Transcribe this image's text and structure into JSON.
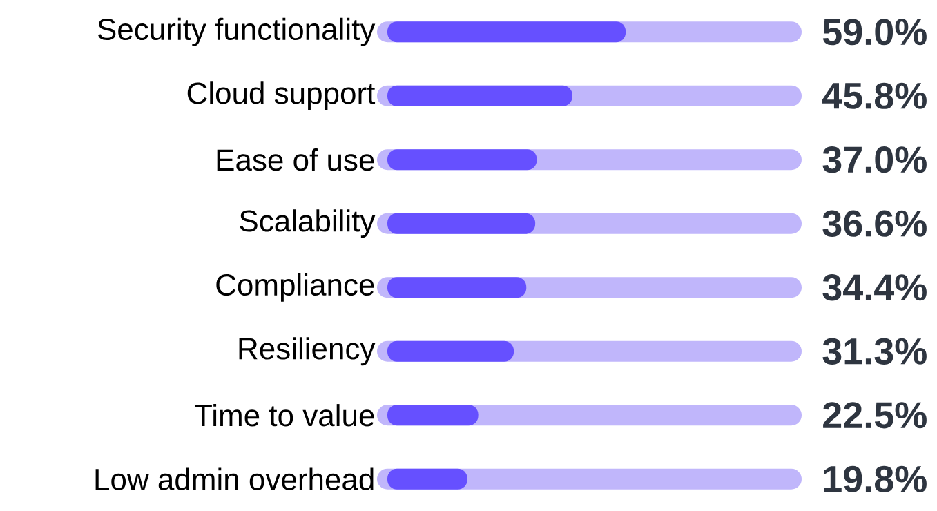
{
  "chart_data": {
    "type": "bar",
    "orientation": "horizontal",
    "categories": [
      "Security functionality",
      "Cloud support",
      "Ease of use",
      "Scalability",
      "Compliance",
      "Resiliency",
      "Time to value",
      "Low admin overhead"
    ],
    "values": [
      59.0,
      45.8,
      37.0,
      36.6,
      34.4,
      31.3,
      22.5,
      19.8
    ],
    "value_labels": [
      "59.0%",
      "45.8%",
      "37.0%",
      "36.6%",
      "34.4%",
      "31.3%",
      "22.5%",
      "19.8%"
    ],
    "color": "#6650ff",
    "xlim": [
      0,
      100
    ],
    "tick_labels": "y"
  }
}
